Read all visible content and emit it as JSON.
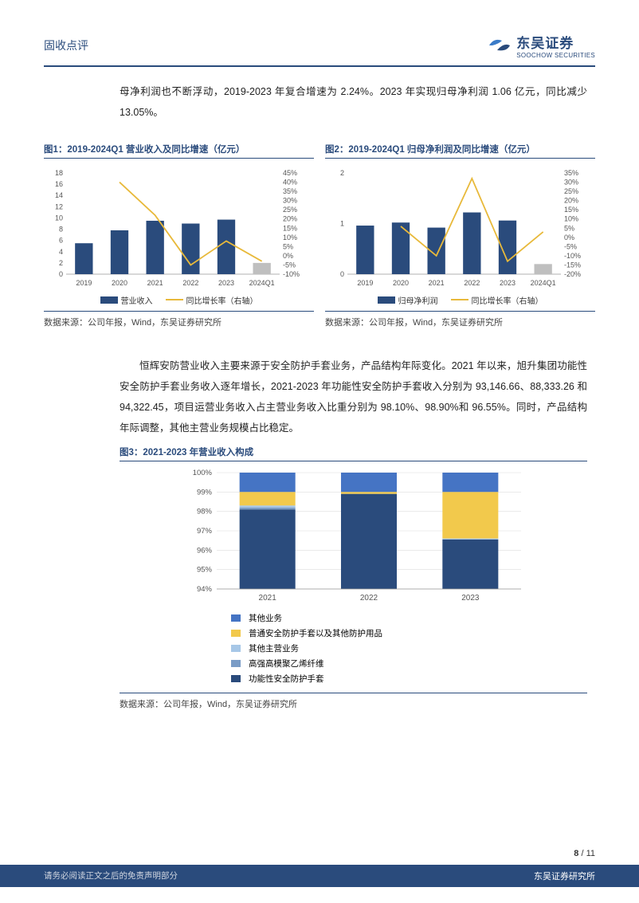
{
  "header": {
    "section_title": "固收点评",
    "brand_cn": "东吴证券",
    "brand_en": "SOOCHOW SECURITIES",
    "brand_color": "#2a4b7c",
    "accent_color": "#3a7bc8"
  },
  "intro_para": "母净利润也不断浮动，2019-2023 年复合增速为 2.24%。2023 年实现归母净利润 1.06 亿元，同比减少 13.05%。",
  "chart1": {
    "title": "图1：2019-2024Q1 营业收入及同比增速（亿元）",
    "type": "bar+line",
    "categories": [
      "2019",
      "2020",
      "2021",
      "2022",
      "2023",
      "2024Q1"
    ],
    "bar_values": [
      5.5,
      7.8,
      9.5,
      9.0,
      9.7,
      2.0
    ],
    "line_values_pct": [
      null,
      40,
      22,
      -5,
      8,
      -3
    ],
    "bar_color": "#2a4b7c",
    "bar_color_last": "#bfbfbf",
    "line_color": "#e8b93a",
    "y_left": {
      "min": 0,
      "max": 18,
      "step": 2
    },
    "y_right": {
      "min": -10,
      "max": 45,
      "step": 5,
      "suffix": "%"
    },
    "legend_bar": "营业收入",
    "legend_line": "同比增长率（右轴）",
    "source": "数据来源：公司年报，Wind，东吴证券研究所"
  },
  "chart2": {
    "title": "图2：2019-2024Q1 归母净利润及同比增速（亿元）",
    "type": "bar+line",
    "categories": [
      "2019",
      "2020",
      "2021",
      "2022",
      "2023",
      "2024Q1"
    ],
    "bar_values": [
      0.96,
      1.02,
      0.92,
      1.22,
      1.06,
      0.2
    ],
    "line_values_pct": [
      null,
      6,
      -10,
      32,
      -13,
      3
    ],
    "bar_color": "#2a4b7c",
    "bar_color_last": "#bfbfbf",
    "line_color": "#e8b93a",
    "y_left": {
      "min": 0,
      "max": 2,
      "step": 1
    },
    "y_right": {
      "min": -20,
      "max": 35,
      "step": 5,
      "suffix": "%"
    },
    "legend_bar": "归母净利润",
    "legend_line": "同比增长率（右轴）",
    "source": "数据来源：公司年报，Wind，东吴证券研究所"
  },
  "mid_para": "恒辉安防营业收入主要来源于安全防护手套业务，产品结构年际变化。2021 年以来，旭升集团功能性安全防护手套业务收入逐年增长，2021-2023 年功能性安全防护手套收入分别为 93,146.66、88,333.26 和 94,322.45，项目运营业务收入占主营业务收入比重分别为 98.10%、98.90%和 96.55%。同时，产品结构年际调整，其他主营业务规模占比稳定。",
  "chart3": {
    "title": "图3：2021-2023 年营业收入构成",
    "type": "stacked-bar",
    "categories": [
      "2021",
      "2022",
      "2023"
    ],
    "y": {
      "min": 94,
      "max": 100,
      "step": 1,
      "suffix": "%"
    },
    "series": [
      {
        "name": "其他业务",
        "color": "#4574c4",
        "values": [
          1.0,
          1.0,
          1.0
        ]
      },
      {
        "name": "普通安全防护手套以及其他防护用品",
        "color": "#f2c94c",
        "values": [
          0.7,
          0.1,
          2.4
        ]
      },
      {
        "name": "其他主营业务",
        "color": "#a7c7e7",
        "values": [
          0.1,
          0.0,
          0.05
        ]
      },
      {
        "name": "高强高模聚乙烯纤维",
        "color": "#7a9cc6",
        "values": [
          0.1,
          0.0,
          0.0
        ]
      },
      {
        "name": "功能性安全防护手套",
        "color": "#2a4b7c",
        "values": [
          98.1,
          98.9,
          96.55
        ]
      }
    ],
    "source": "数据来源：公司年报，Wind，东吴证券研究所"
  },
  "footer": {
    "page_current": "8",
    "page_total": "11",
    "disclaimer": "请务必阅读正文之后的免责声明部分",
    "org": "东吴证券研究所"
  }
}
